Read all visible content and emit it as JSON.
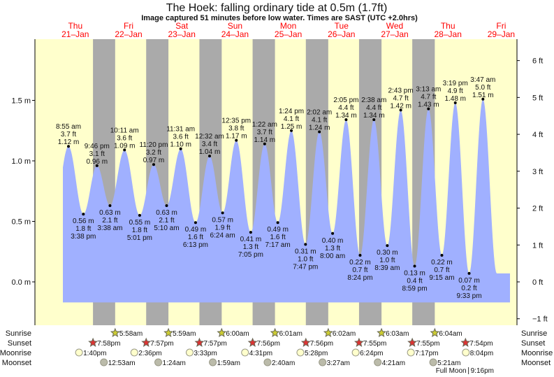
{
  "title": "The Hoek: falling  ordinary tide at 0.5m (1.7ft)",
  "subtitle": "Image captured 51 minutes before low water. Times are SAST (UTC +2.0hrs)",
  "colors": {
    "day": "#ffffcc",
    "night": "#aaaaaa",
    "water": "#a0b0ff",
    "day_label": "#ff0000",
    "sunrise": "#cccc33",
    "sunset": "#dd3333",
    "moonrise": "#ffffcc",
    "moonset": "#bbbbaa",
    "now_marker": "#dddd22"
  },
  "current_marker": {
    "day": "25-Jan",
    "time": "6:26 am",
    "m": 0.5
  },
  "chart_data": {
    "type": "area",
    "title": "The Hoek: falling  ordinary tide at 0.5m (1.7ft)",
    "left_axis": {
      "unit": "m",
      "range": [
        -0.17,
        2.0
      ],
      "ticks": [
        "0.0 m",
        "0.5 m",
        "1.0 m",
        "1.5 m"
      ],
      "tick_values": [
        0,
        0.5,
        1.0,
        1.5
      ]
    },
    "right_axis": {
      "unit": "ft",
      "ticks": [
        "-1 ft",
        "0 ft",
        "1 ft",
        "2 ft",
        "3 ft",
        "4 ft",
        "5 ft",
        "6 ft"
      ],
      "tick_values": [
        -1,
        0,
        1,
        2,
        3,
        4,
        5,
        6
      ]
    },
    "days": [
      {
        "weekday": "Thu",
        "date": "21-Jan"
      },
      {
        "weekday": "Fri",
        "date": "22-Jan"
      },
      {
        "weekday": "Sat",
        "date": "23-Jan"
      },
      {
        "weekday": "Sun",
        "date": "24-Jan"
      },
      {
        "weekday": "Mon",
        "date": "25-Jan"
      },
      {
        "weekday": "Tue",
        "date": "26-Jan"
      },
      {
        "weekday": "Wed",
        "date": "27-Jan"
      },
      {
        "weekday": "Thu",
        "date": "28-Jan"
      },
      {
        "weekday": "Fri",
        "date": "29-Jan"
      }
    ],
    "tides": [
      {
        "date": "21-Jan",
        "time": "8:55 am",
        "m": "1.12 m",
        "ft": "3.7 ft",
        "v": 1.12,
        "type": "high"
      },
      {
        "date": "21-Jan",
        "time": "3:38 pm",
        "m": "0.56 m",
        "ft": "1.8 ft",
        "v": 0.56,
        "type": "low"
      },
      {
        "date": "21-Jan",
        "time": "9:46 pm",
        "m": "0.96 m",
        "ft": "3.1 ft",
        "v": 0.96,
        "type": "high"
      },
      {
        "date": "22-Jan",
        "time": "3:38 am",
        "m": "0.63 m",
        "ft": "2.1 ft",
        "v": 0.63,
        "type": "low"
      },
      {
        "date": "22-Jan",
        "time": "10:11 am",
        "m": "1.09 m",
        "ft": "3.6 ft",
        "v": 1.09,
        "type": "high"
      },
      {
        "date": "22-Jan",
        "time": "5:01 pm",
        "m": "0.55 m",
        "ft": "1.8 ft",
        "v": 0.55,
        "type": "low"
      },
      {
        "date": "22-Jan",
        "time": "11:20 pm",
        "m": "0.97 m",
        "ft": "3.2 ft",
        "v": 0.97,
        "type": "high"
      },
      {
        "date": "23-Jan",
        "time": "5:10 am",
        "m": "0.63 m",
        "ft": "2.1 ft",
        "v": 0.63,
        "type": "low"
      },
      {
        "date": "23-Jan",
        "time": "11:31 am",
        "m": "1.10 m",
        "ft": "3.6 ft",
        "v": 1.1,
        "type": "high"
      },
      {
        "date": "23-Jan",
        "time": "6:13 pm",
        "m": "0.49 m",
        "ft": "1.6 ft",
        "v": 0.49,
        "type": "low"
      },
      {
        "date": "24-Jan",
        "time": "12:32 am",
        "m": "1.04 m",
        "ft": "3.4 ft",
        "v": 1.04,
        "type": "high"
      },
      {
        "date": "24-Jan",
        "time": "6:24 am",
        "m": "0.57 m",
        "ft": "1.9 ft",
        "v": 0.57,
        "type": "low"
      },
      {
        "date": "24-Jan",
        "time": "12:35 pm",
        "m": "1.17 m",
        "ft": "3.8 ft",
        "v": 1.17,
        "type": "high"
      },
      {
        "date": "24-Jan",
        "time": "7:05 pm",
        "m": "0.41 m",
        "ft": "1.3 ft",
        "v": 0.41,
        "type": "low"
      },
      {
        "date": "25-Jan",
        "time": "1:22 am",
        "m": "1.14 m",
        "ft": "3.7 ft",
        "v": 1.14,
        "type": "high"
      },
      {
        "date": "25-Jan",
        "time": "7:17 am",
        "m": "0.49 m",
        "ft": "1.6 ft",
        "v": 0.49,
        "type": "low"
      },
      {
        "date": "25-Jan",
        "time": "1:24 pm",
        "m": "1.25 m",
        "ft": "4.1 ft",
        "v": 1.25,
        "type": "high"
      },
      {
        "date": "25-Jan",
        "time": "7:47 pm",
        "m": "0.31 m",
        "ft": "1.0 ft",
        "v": 0.31,
        "type": "low"
      },
      {
        "date": "26-Jan",
        "time": "2:02 am",
        "m": "1.24 m",
        "ft": "4.1 ft",
        "v": 1.24,
        "type": "high"
      },
      {
        "date": "26-Jan",
        "time": "8:00 am",
        "m": "0.40 m",
        "ft": "1.3 ft",
        "v": 0.4,
        "type": "low"
      },
      {
        "date": "26-Jan",
        "time": "2:05 pm",
        "m": "1.34 m",
        "ft": "4.4 ft",
        "v": 1.34,
        "type": "high"
      },
      {
        "date": "26-Jan",
        "time": "8:24 pm",
        "m": "0.22 m",
        "ft": "0.7 ft",
        "v": 0.22,
        "type": "low"
      },
      {
        "date": "27-Jan",
        "time": "2:38 am",
        "m": "1.34 m",
        "ft": "4.4 ft",
        "v": 1.34,
        "type": "high"
      },
      {
        "date": "27-Jan",
        "time": "8:39 am",
        "m": "0.30 m",
        "ft": "1.0 ft",
        "v": 0.3,
        "type": "low"
      },
      {
        "date": "27-Jan",
        "time": "2:43 pm",
        "m": "1.42 m",
        "ft": "4.7 ft",
        "v": 1.42,
        "type": "high"
      },
      {
        "date": "27-Jan",
        "time": "8:59 pm",
        "m": "0.13 m",
        "ft": "0.4 ft",
        "v": 0.13,
        "type": "low"
      },
      {
        "date": "28-Jan",
        "time": "3:13 am",
        "m": "1.43 m",
        "ft": "4.7 ft",
        "v": 1.43,
        "type": "high"
      },
      {
        "date": "28-Jan",
        "time": "9:15 am",
        "m": "0.22 m",
        "ft": "0.7 ft",
        "v": 0.22,
        "type": "low"
      },
      {
        "date": "28-Jan",
        "time": "3:19 pm",
        "m": "1.48 m",
        "ft": "4.9 ft",
        "v": 1.48,
        "type": "high"
      },
      {
        "date": "28-Jan",
        "time": "9:33 pm",
        "m": "0.07 m",
        "ft": "0.2 ft",
        "v": 0.07,
        "type": "low"
      },
      {
        "date": "29-Jan",
        "time": "3:47 am",
        "m": "1.51 m",
        "ft": "5.0 ft",
        "v": 1.51,
        "type": "high"
      }
    ]
  },
  "rows": [
    {
      "label": "Sunrise",
      "kind": "sunrise",
      "events": [
        {
          "date": "22-Jan",
          "time": "5:58am"
        },
        {
          "date": "23-Jan",
          "time": "5:59am"
        },
        {
          "date": "24-Jan",
          "time": "6:00am"
        },
        {
          "date": "25-Jan",
          "time": "6:01am"
        },
        {
          "date": "26-Jan",
          "time": "6:02am"
        },
        {
          "date": "27-Jan",
          "time": "6:03am"
        },
        {
          "date": "28-Jan",
          "time": "6:04am"
        }
      ]
    },
    {
      "label": "Sunset",
      "kind": "sunset",
      "events": [
        {
          "date": "21-Jan",
          "time": "7:58pm"
        },
        {
          "date": "22-Jan",
          "time": "7:57pm"
        },
        {
          "date": "23-Jan",
          "time": "7:57pm"
        },
        {
          "date": "24-Jan",
          "time": "7:56pm"
        },
        {
          "date": "25-Jan",
          "time": "7:56pm"
        },
        {
          "date": "26-Jan",
          "time": "7:55pm"
        },
        {
          "date": "27-Jan",
          "time": "7:55pm"
        },
        {
          "date": "28-Jan",
          "time": "7:54pm"
        }
      ]
    },
    {
      "label": "Moonrise",
      "kind": "moonrise",
      "events": [
        {
          "date": "21-Jan",
          "time": "1:40pm"
        },
        {
          "date": "22-Jan",
          "time": "2:36pm"
        },
        {
          "date": "23-Jan",
          "time": "3:33pm"
        },
        {
          "date": "24-Jan",
          "time": "4:31pm"
        },
        {
          "date": "25-Jan",
          "time": "5:28pm"
        },
        {
          "date": "26-Jan",
          "time": "6:24pm"
        },
        {
          "date": "27-Jan",
          "time": "7:17pm"
        },
        {
          "date": "28-Jan",
          "time": "8:04pm"
        }
      ]
    },
    {
      "label": "Moonset",
      "kind": "moonset",
      "events": [
        {
          "date": "22-Jan",
          "time": "12:53am"
        },
        {
          "date": "23-Jan",
          "time": "1:24am"
        },
        {
          "date": "24-Jan",
          "time": "1:59am"
        },
        {
          "date": "25-Jan",
          "time": "2:40am"
        },
        {
          "date": "26-Jan",
          "time": "3:27am"
        },
        {
          "date": "27-Jan",
          "time": "4:21am"
        },
        {
          "date": "28-Jan",
          "time": "5:21am"
        }
      ]
    }
  ],
  "moon_phase": {
    "label": "Full Moon",
    "date": "28-Jan",
    "time": "9:16pm"
  }
}
